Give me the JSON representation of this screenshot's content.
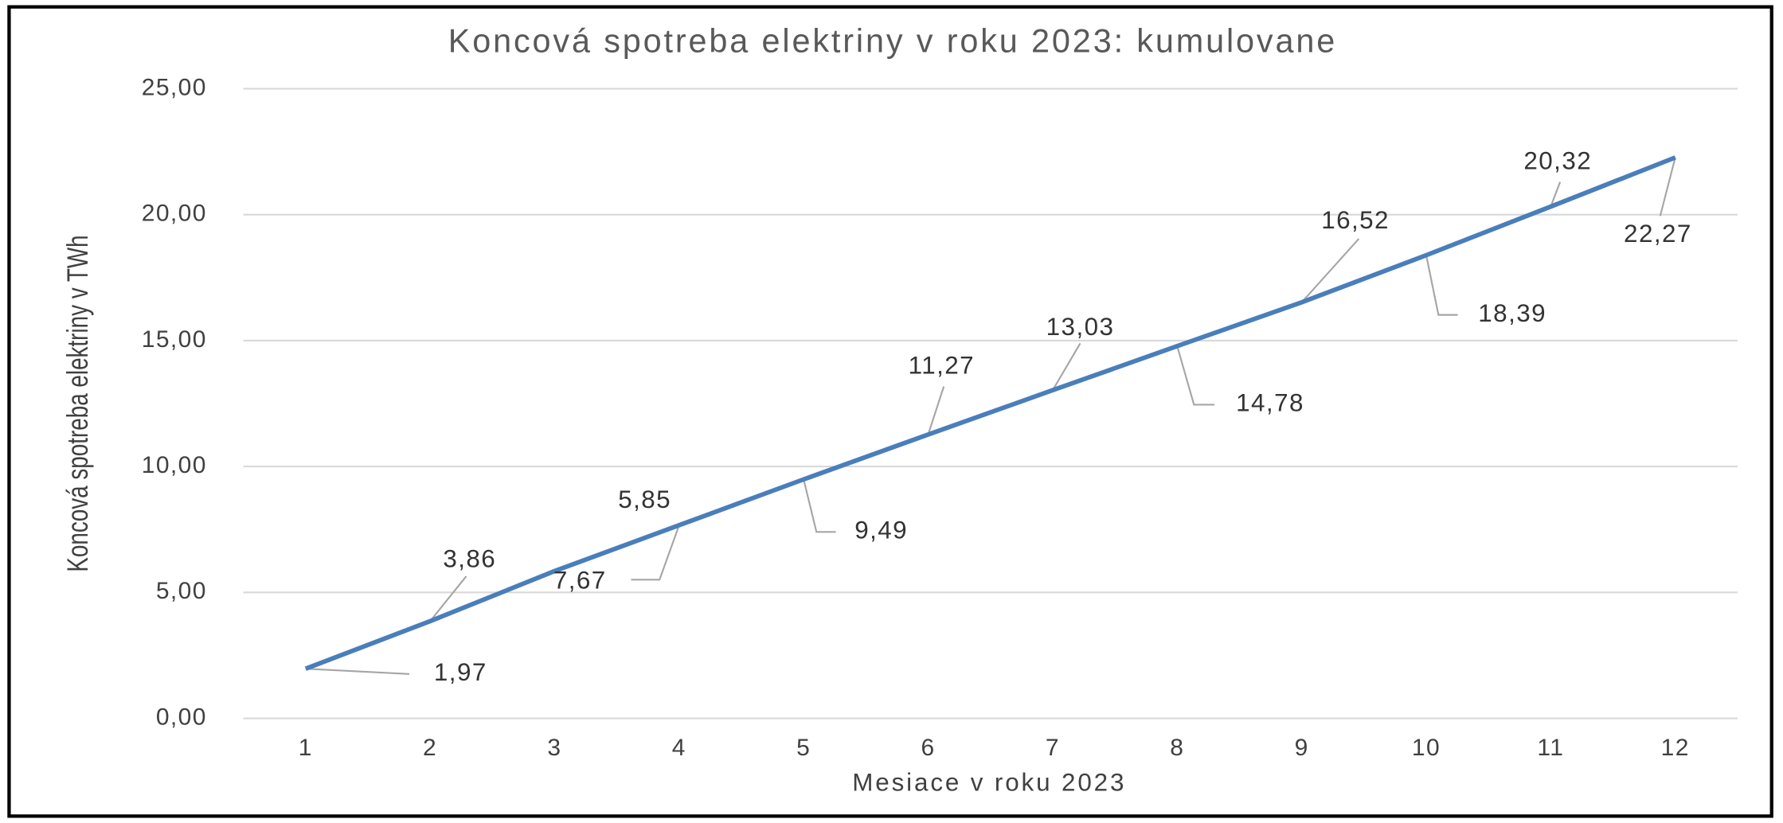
{
  "chart_data": {
    "type": "line",
    "title": "Koncová spotreba elektriny v roku 2023: kumulovane",
    "x_label": "Mesiace v roku 2023",
    "y_label": "Koncová spotreba elektriny v TWh",
    "categories": [
      "1",
      "2",
      "3",
      "4",
      "5",
      "6",
      "7",
      "8",
      "9",
      "10",
      "11",
      "12"
    ],
    "series": [
      {
        "name": "Koncová spotreba elektriny v TWh",
        "color": "#4a7ebb",
        "values": [
          1.97,
          3.86,
          5.85,
          7.67,
          9.49,
          11.27,
          13.03,
          14.78,
          16.52,
          18.39,
          20.32,
          22.27
        ],
        "value_labels": [
          "1,97",
          "3,86",
          "5,85",
          "7,67",
          "9,49",
          "11,27",
          "13,03",
          "14,78",
          "16,52",
          "18,39",
          "20,32",
          "22,27"
        ]
      }
    ],
    "ylim": [
      0,
      25
    ],
    "yticks": [
      {
        "value": 0,
        "label": "0,00"
      },
      {
        "value": 5,
        "label": "5,00"
      },
      {
        "value": 10,
        "label": "10,00"
      },
      {
        "value": 15,
        "label": "15,00"
      },
      {
        "value": 20,
        "label": "20,00"
      },
      {
        "value": 25,
        "label": "25,00"
      }
    ],
    "grid": true
  }
}
